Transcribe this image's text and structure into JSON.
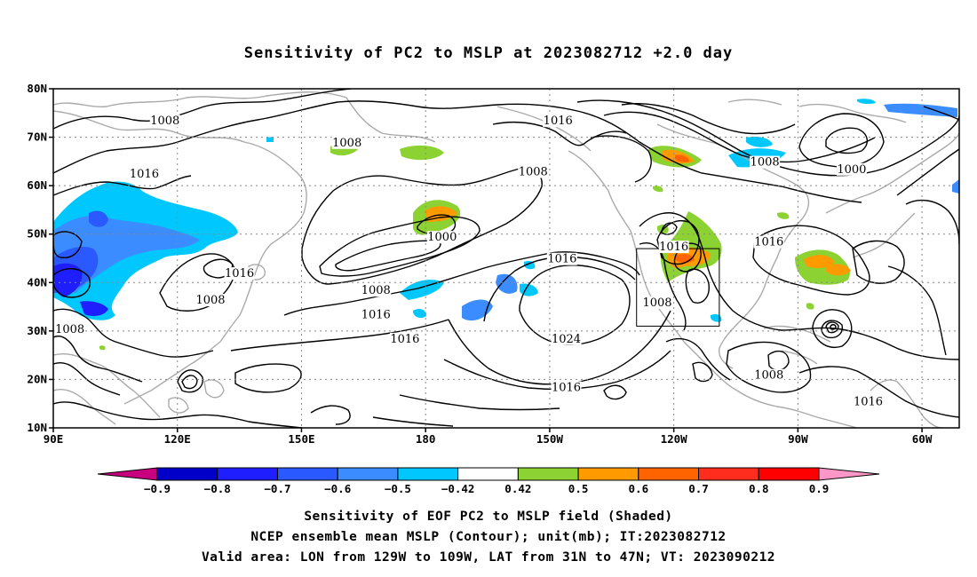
{
  "title": "Sensitivity of PC2 to MSLP at 2023082712 +2.0 day",
  "axes": {
    "lat_ticks": [
      "80N",
      "70N",
      "60N",
      "50N",
      "40N",
      "30N",
      "20N",
      "10N"
    ],
    "lon_ticks": [
      "90E",
      "120E",
      "150E",
      "180",
      "150W",
      "120W",
      "90W",
      "60W"
    ]
  },
  "contour_labels": [
    {
      "text": "1008",
      "lon": 117,
      "lat": 73
    },
    {
      "text": "1008",
      "lon": 161,
      "lat": 68.5
    },
    {
      "text": "1016",
      "lon": 212,
      "lat": 73
    },
    {
      "text": "1016",
      "lon": 112,
      "lat": 62
    },
    {
      "text": "1008",
      "lon": 206,
      "lat": 62.5
    },
    {
      "text": "1008",
      "lon": 262,
      "lat": 64.5
    },
    {
      "text": "1000",
      "lon": 283,
      "lat": 63
    },
    {
      "text": "1000",
      "lon": 184,
      "lat": 49
    },
    {
      "text": "1016",
      "lon": 213,
      "lat": 44.5
    },
    {
      "text": "1016",
      "lon": 240,
      "lat": 47
    },
    {
      "text": "1016",
      "lon": 263,
      "lat": 48
    },
    {
      "text": "1016",
      "lon": 135,
      "lat": 41.5
    },
    {
      "text": "1008",
      "lon": 168,
      "lat": 38
    },
    {
      "text": "1016",
      "lon": 168,
      "lat": 33
    },
    {
      "text": "1008",
      "lon": 128,
      "lat": 36
    },
    {
      "text": "1008",
      "lon": 94,
      "lat": 30
    },
    {
      "text": "1016",
      "lon": 175,
      "lat": 28
    },
    {
      "text": "1024",
      "lon": 214,
      "lat": 28
    },
    {
      "text": "1008",
      "lon": 236,
      "lat": 35.5
    },
    {
      "text": "1016",
      "lon": 214,
      "lat": 18
    },
    {
      "text": "1008",
      "lon": 263,
      "lat": 20.5
    },
    {
      "text": "1016",
      "lon": 287,
      "lat": 15
    }
  ],
  "colorbar": {
    "labels": [
      "-0.9",
      "-0.8",
      "-0.7",
      "-0.6",
      "-0.5",
      "-0.42",
      "0.42",
      "0.5",
      "0.6",
      "0.7",
      "0.8",
      "0.9"
    ],
    "colors": [
      "#c8007f",
      "#0000c8",
      "#1e1eff",
      "#2a5aff",
      "#3a8cff",
      "#00c8ff",
      "#ffffff",
      "#8cd232",
      "#ff9b00",
      "#ff6400",
      "#ff2d1e",
      "#ff0000",
      "#ff96c8"
    ]
  },
  "captions": [
    "Sensitivity of EOF PC2 to MSLP field (Shaded)",
    "NCEP ensemble mean MSLP (Contour); unit(mb); IT:2023082712",
    "Valid area: LON from 129W to 109W, LAT from 31N to 47N; VT: 2023090212"
  ],
  "valid_box": {
    "lon_min": 231,
    "lon_max": 251,
    "lat_min": 31,
    "lat_max": 47
  }
}
